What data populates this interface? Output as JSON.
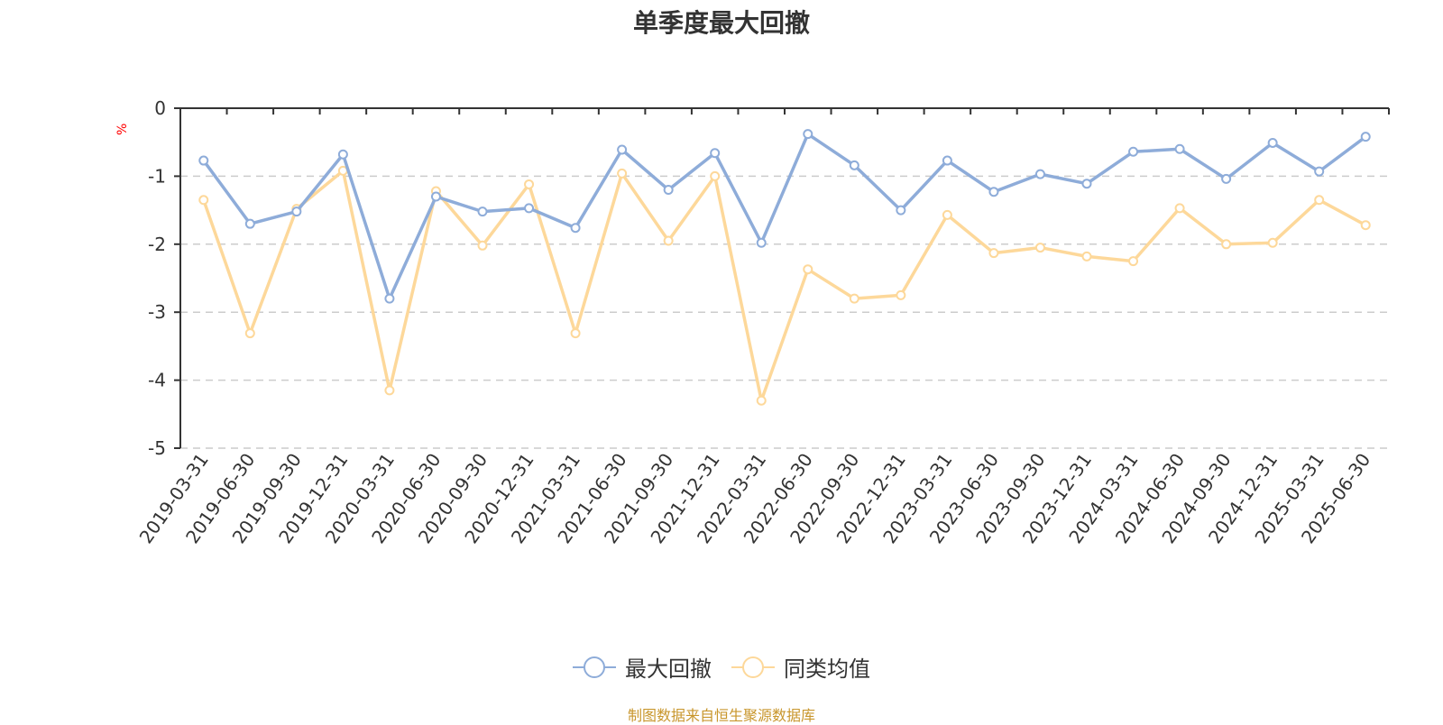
{
  "chart_data": {
    "type": "line",
    "title": "单季度最大回撤",
    "ylabel": "%",
    "ylim": [
      -5,
      0
    ],
    "yticks": [
      0,
      -1,
      -2,
      -3,
      -4,
      -5
    ],
    "grid": true,
    "legend_position": "bottom",
    "categories": [
      "2019-03-31",
      "2019-06-30",
      "2019-09-30",
      "2019-12-31",
      "2020-03-31",
      "2020-06-30",
      "2020-09-30",
      "2020-12-31",
      "2021-03-31",
      "2021-06-30",
      "2021-09-30",
      "2021-12-31",
      "2022-03-31",
      "2022-06-30",
      "2022-09-30",
      "2022-12-31",
      "2023-03-31",
      "2023-06-30",
      "2023-09-30",
      "2023-12-31",
      "2024-03-31",
      "2024-06-30",
      "2024-09-30",
      "2024-12-31",
      "2025-03-31",
      "2025-06-30"
    ],
    "series": [
      {
        "name": "最大回撤",
        "color": "#8eacd9",
        "values": [
          -0.77,
          -1.7,
          -1.52,
          -0.68,
          -2.8,
          -1.3,
          -1.52,
          -1.47,
          -1.76,
          -0.61,
          -1.2,
          -0.66,
          -1.98,
          -0.38,
          -0.84,
          -1.5,
          -0.77,
          -1.23,
          -0.97,
          -1.11,
          -0.64,
          -0.6,
          -1.04,
          -0.51,
          -0.93,
          -0.42
        ]
      },
      {
        "name": "同类均值",
        "color": "#fdd89a",
        "values": [
          -1.35,
          -3.31,
          -1.48,
          -0.92,
          -4.15,
          -1.22,
          -2.02,
          -1.12,
          -3.31,
          -0.96,
          -1.95,
          -1.0,
          -4.3,
          -2.37,
          -2.8,
          -2.75,
          -1.57,
          -2.13,
          -2.05,
          -2.18,
          -2.25,
          -1.47,
          -2.0,
          -1.98,
          -1.35,
          -1.72
        ]
      }
    ]
  },
  "footer_note": "制图数据来自恒生聚源数据库"
}
